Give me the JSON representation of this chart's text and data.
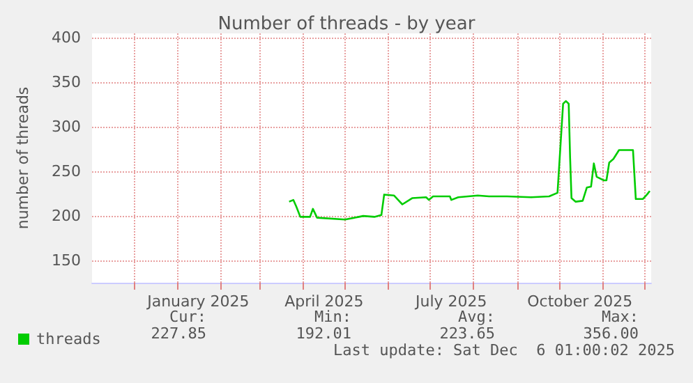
{
  "chart_data": {
    "type": "line",
    "title": "Number of threads - by year",
    "ylabel": "number of threads",
    "x": [
      "2025-03-22",
      "2025-03-25",
      "2025-03-27",
      "2025-03-30",
      "2025-04-06",
      "2025-04-08",
      "2025-04-11",
      "2025-05-01",
      "2025-05-11",
      "2025-05-14",
      "2025-05-22",
      "2025-05-27",
      "2025-05-29",
      "2025-06-05",
      "2025-06-08",
      "2025-06-11",
      "2025-06-18",
      "2025-06-28",
      "2025-06-30",
      "2025-07-03",
      "2025-07-15",
      "2025-07-16",
      "2025-07-21",
      "2025-08-04",
      "2025-08-12",
      "2025-08-25",
      "2025-09-11",
      "2025-09-24",
      "2025-09-30",
      "2025-10-04",
      "2025-10-06",
      "2025-10-08",
      "2025-10-09",
      "2025-10-10",
      "2025-10-13",
      "2025-10-18",
      "2025-10-21",
      "2025-10-24",
      "2025-10-26",
      "2025-10-28",
      "2025-11-02",
      "2025-11-04",
      "2025-11-06",
      "2025-11-09",
      "2025-11-13",
      "2025-11-23",
      "2025-11-25",
      "2025-11-30",
      "2025-12-03",
      "2025-12-05"
    ],
    "series": [
      {
        "name": "threads",
        "color": "#00cc00",
        "values": [
          216,
          218,
          211,
          199,
          199,
          208,
          198,
          196,
          199,
          200,
          199,
          201,
          224,
          223,
          218,
          213,
          220,
          221,
          218,
          222,
          222,
          218,
          221,
          223,
          222,
          222,
          221,
          222,
          226,
          326,
          329,
          326,
          266,
          220,
          216,
          217,
          232,
          233,
          259,
          244,
          240,
          240,
          260,
          264,
          274,
          274,
          219,
          219,
          224,
          228
        ]
      }
    ],
    "xlim": [
      "2024-11-01",
      "2025-12-06"
    ],
    "xticks": [
      {
        "value": "2024-12-01",
        "label": null
      },
      {
        "value": "2025-01-01",
        "label": null
      },
      {
        "value": "2025-02-01",
        "label": null
      },
      {
        "value": "2025-03-01",
        "label": null
      },
      {
        "value": "2025-04-01",
        "label": null
      },
      {
        "value": "2025-05-01",
        "label": null
      },
      {
        "value": "2025-06-01",
        "label": null
      },
      {
        "value": "2025-07-01",
        "label": null
      },
      {
        "value": "2025-08-01",
        "label": null
      },
      {
        "value": "2025-09-01",
        "label": null
      },
      {
        "value": "2025-10-01",
        "label": null
      },
      {
        "value": "2025-11-01",
        "label": null
      },
      {
        "value": "2025-12-01",
        "label": null
      },
      {
        "value": "2025-01-16",
        "label": "January 2025"
      },
      {
        "value": "2025-04-16",
        "label": "April 2025"
      },
      {
        "value": "2025-07-16",
        "label": "July 2025"
      },
      {
        "value": "2025-10-16",
        "label": "October 2025"
      }
    ],
    "ylim": [
      125,
      405
    ],
    "yticks": [
      150,
      200,
      250,
      300,
      350,
      400
    ],
    "grid": true,
    "legend": "bottom left",
    "marker": "none",
    "line_style": "solid",
    "annotations": [
      "Cur:",
      "Min:",
      "Avg:",
      "Max:",
      "227.85",
      "192.01",
      "223.65",
      "356.00",
      "Last update: Sat Dec  6 01:00:02 2025"
    ]
  }
}
